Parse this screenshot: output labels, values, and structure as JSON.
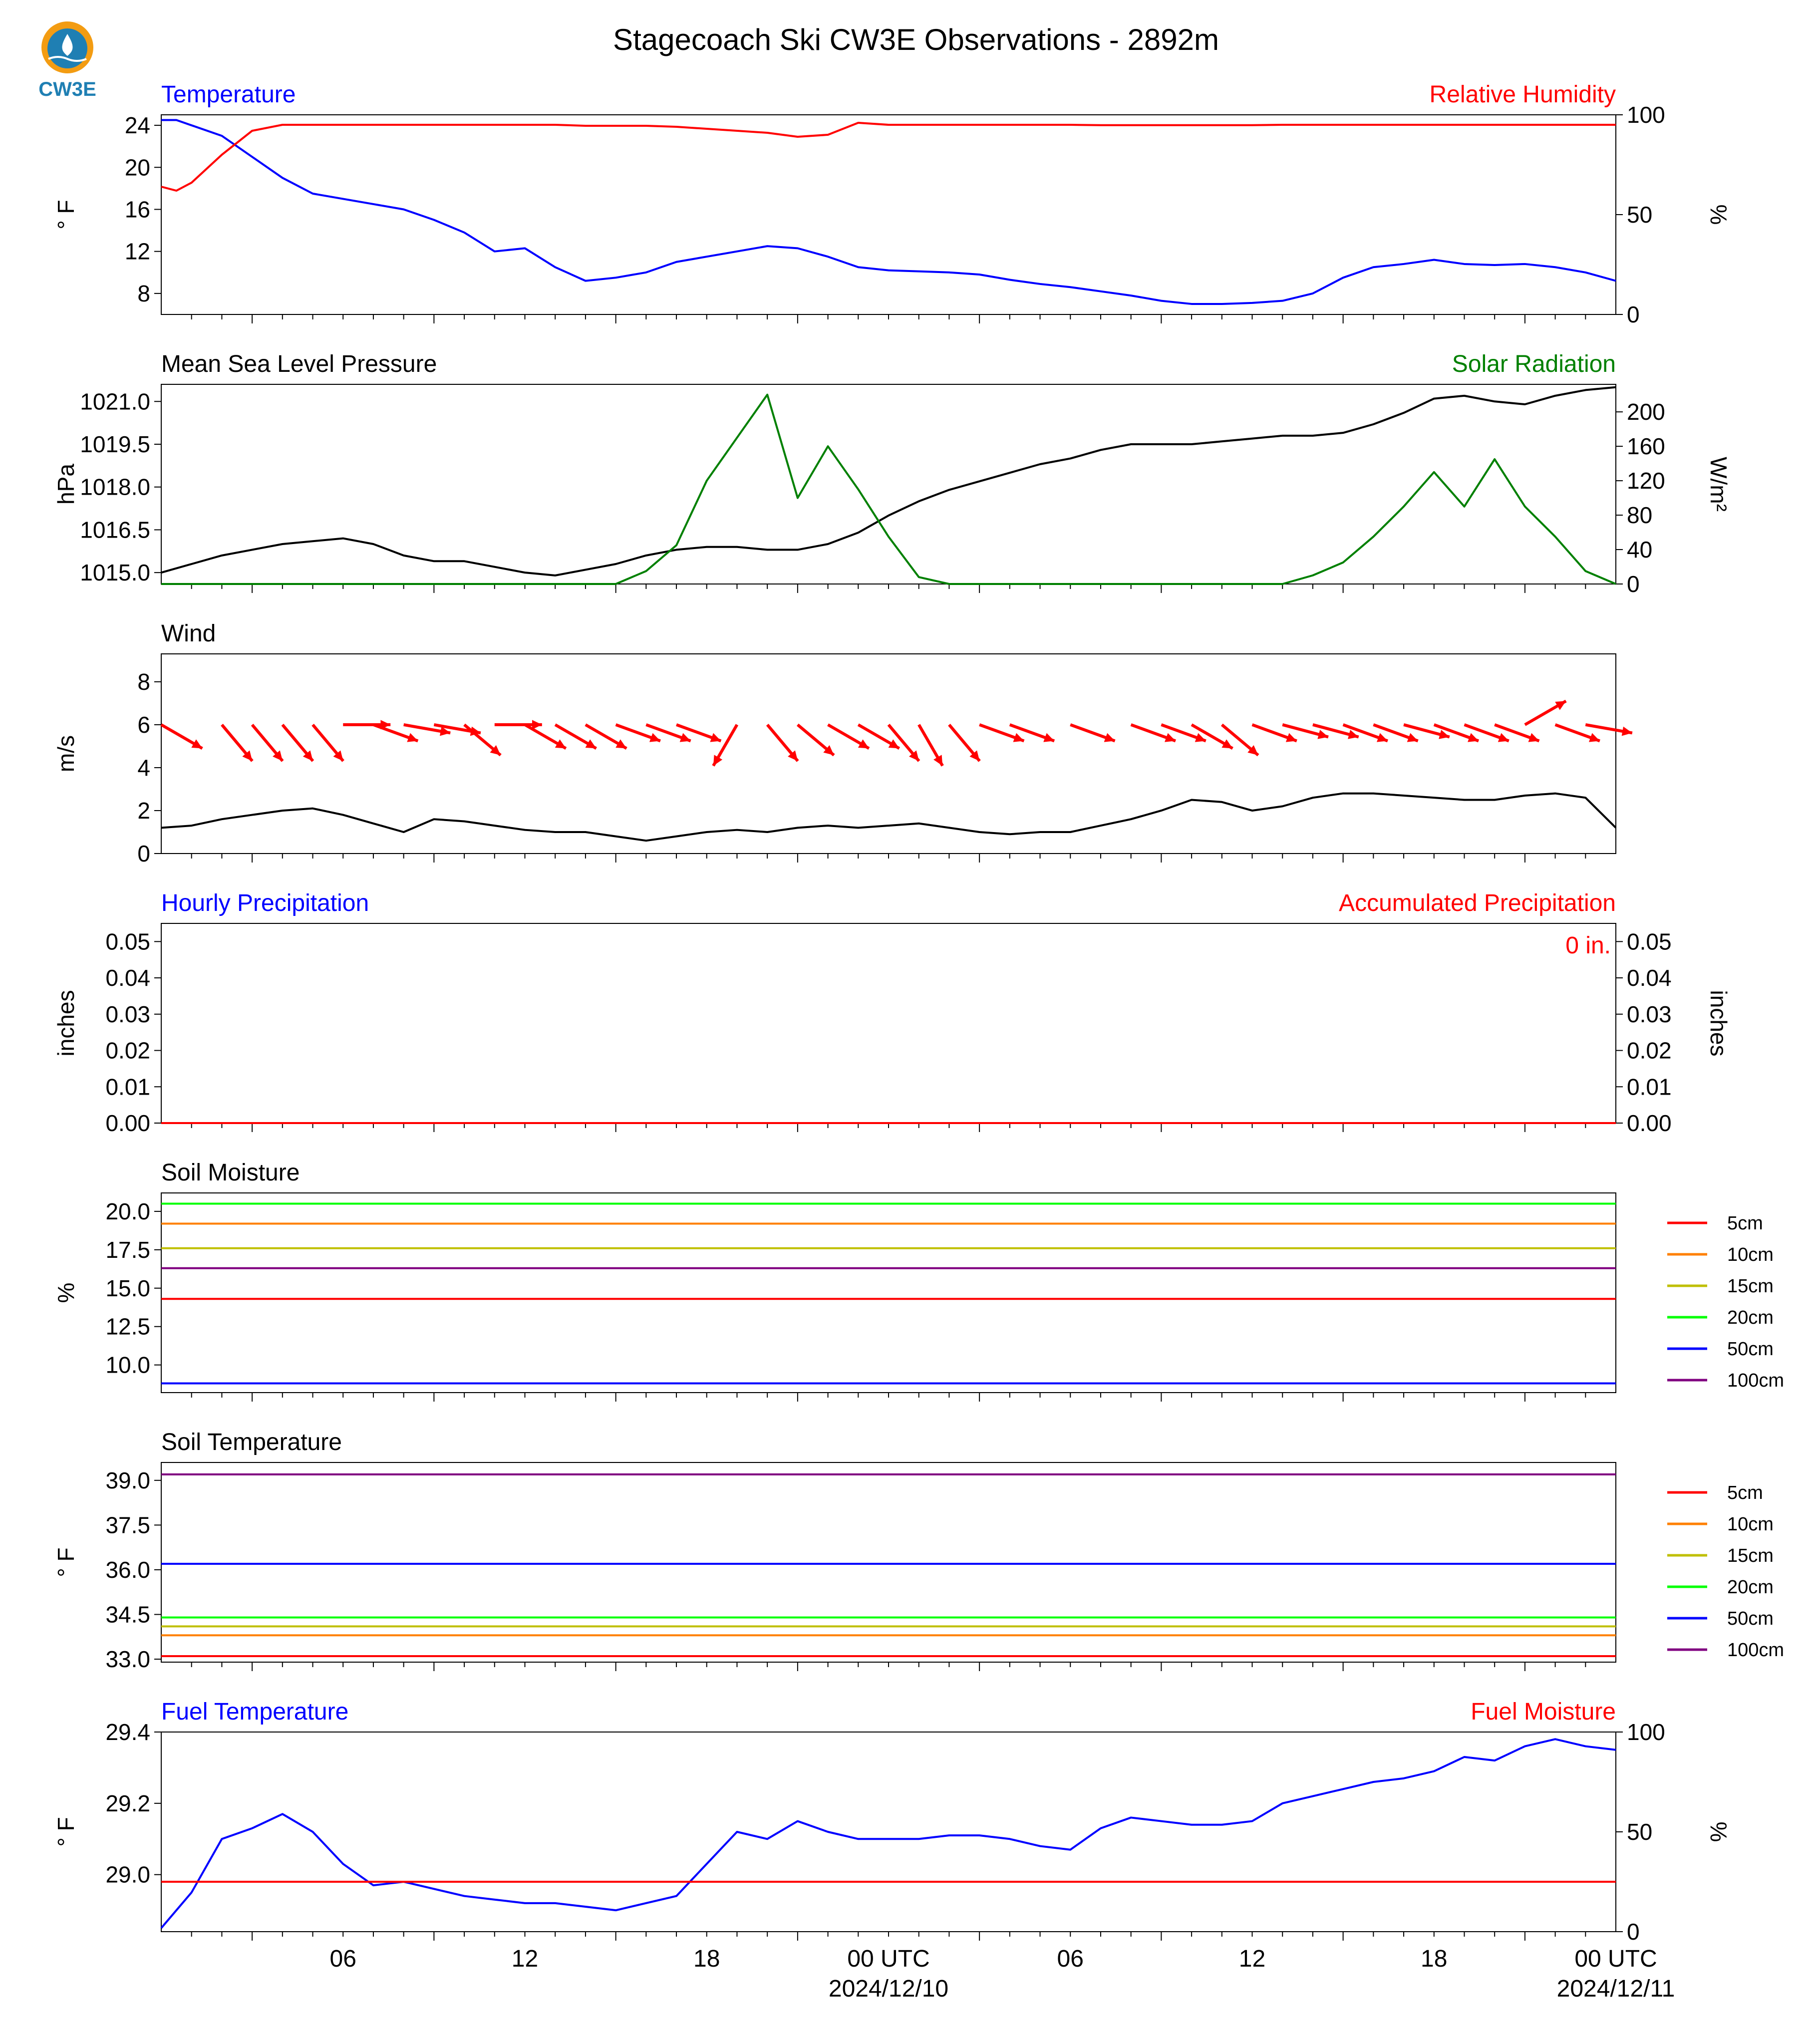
{
  "title": "Stagecoach Ski CW3E Observations - 2892m",
  "logo_text": "CW3E",
  "x_axis": {
    "tick_labels": [
      "06",
      "12",
      "18",
      "00 UTC",
      "06",
      "12",
      "18",
      "00 UTC"
    ],
    "date_labels": [
      "2024/12/10",
      "2024/12/11"
    ]
  },
  "chart_data": [
    {
      "type": "line",
      "title_left": "Temperature",
      "title_right": "Relative Humidity",
      "ylabel_left": "° F",
      "ylabel_right": "%",
      "ylim_left": [
        6,
        25
      ],
      "ylim_right": [
        0,
        100
      ],
      "yticks_left": [
        8,
        12,
        16,
        20,
        24
      ],
      "yticks_right": [
        0,
        50,
        100
      ],
      "x_hours": [
        0,
        0.5,
        1,
        2,
        3,
        4,
        5,
        6,
        7,
        8,
        9,
        10,
        11,
        12,
        13,
        14,
        15,
        16,
        17,
        18,
        19,
        20,
        21,
        22,
        23,
        24,
        25,
        26,
        27,
        28,
        29,
        30,
        31,
        32,
        33,
        34,
        35,
        36,
        37,
        38,
        39,
        40,
        41,
        42,
        43,
        44,
        45,
        46,
        47,
        48
      ],
      "series": [
        {
          "name": "Temperature",
          "axis": "left",
          "color": "#0000ff",
          "values": [
            24.5,
            24.5,
            24,
            23,
            21,
            19,
            17.5,
            17,
            16.5,
            16,
            15,
            13.8,
            12,
            12.3,
            10.5,
            9.2,
            9.5,
            10,
            11,
            11.5,
            12,
            12.5,
            12.3,
            11.5,
            10.5,
            10.2,
            10.1,
            10,
            9.8,
            9.3,
            8.9,
            8.6,
            8.2,
            7.8,
            7.3,
            7,
            7,
            7.1,
            7.3,
            8,
            9.5,
            10.5,
            10.8,
            11.2,
            10.8,
            10.7,
            10.8,
            10.5,
            10,
            9.2
          ]
        },
        {
          "name": "Relative Humidity",
          "axis": "right",
          "color": "#ff0000",
          "values": [
            64,
            62,
            66,
            80,
            92,
            95,
            95,
            95,
            95,
            95,
            95,
            95,
            95,
            95,
            95,
            94.5,
            94.5,
            94.5,
            94,
            93,
            92,
            91,
            89,
            90,
            96,
            95,
            95,
            95,
            95,
            95,
            95,
            95,
            94.8,
            94.8,
            94.8,
            94.8,
            94.8,
            94.8,
            95,
            95,
            95,
            95,
            95,
            95,
            95,
            95,
            95,
            95,
            95,
            95
          ]
        }
      ]
    },
    {
      "type": "line",
      "title_left": "Mean Sea Level Pressure",
      "title_right": "Solar Radiation",
      "ylabel_left": "hPa",
      "ylabel_right": "W/m²",
      "ylim_left": [
        1014.6,
        1021.6
      ],
      "ylim_right": [
        0,
        232
      ],
      "yticks_left": [
        1015.0,
        1016.5,
        1018.0,
        1019.5,
        1021.0
      ],
      "yticks_right": [
        0,
        40,
        80,
        120,
        160,
        200
      ],
      "x_hours": [
        0,
        1,
        2,
        3,
        4,
        5,
        6,
        7,
        8,
        9,
        10,
        11,
        12,
        13,
        14,
        15,
        16,
        17,
        18,
        19,
        20,
        21,
        22,
        23,
        24,
        25,
        26,
        27,
        28,
        29,
        30,
        31,
        32,
        33,
        34,
        35,
        36,
        37,
        38,
        39,
        40,
        41,
        42,
        43,
        44,
        45,
        46,
        47,
        48
      ],
      "series": [
        {
          "name": "Mean Sea Level Pressure",
          "axis": "left",
          "color": "#000000",
          "values": [
            1015.0,
            1015.3,
            1015.6,
            1015.8,
            1016.0,
            1016.1,
            1016.2,
            1016.0,
            1015.6,
            1015.4,
            1015.4,
            1015.2,
            1015.0,
            1014.9,
            1015.1,
            1015.3,
            1015.6,
            1015.8,
            1015.9,
            1015.9,
            1015.8,
            1015.8,
            1016.0,
            1016.4,
            1017.0,
            1017.5,
            1017.9,
            1018.2,
            1018.5,
            1018.8,
            1019.0,
            1019.3,
            1019.5,
            1019.5,
            1019.5,
            1019.6,
            1019.7,
            1019.8,
            1019.8,
            1019.9,
            1020.2,
            1020.6,
            1021.1,
            1021.2,
            1021.0,
            1020.9,
            1021.2,
            1021.4,
            1021.5
          ]
        },
        {
          "name": "Solar Radiation",
          "axis": "right",
          "color": "#008000",
          "values": [
            0,
            0,
            0,
            0,
            0,
            0,
            0,
            0,
            0,
            0,
            0,
            0,
            0,
            0,
            0,
            0,
            15,
            45,
            120,
            170,
            220,
            100,
            160,
            110,
            55,
            8,
            0,
            0,
            0,
            0,
            0,
            0,
            0,
            0,
            0,
            0,
            0,
            0,
            10,
            25,
            55,
            90,
            130,
            90,
            145,
            90,
            55,
            15,
            0
          ]
        }
      ]
    },
    {
      "type": "line",
      "title_left": "Wind",
      "ylabel_left": "m/s",
      "ylim_left": [
        0,
        9.3
      ],
      "yticks_left": [
        0,
        2,
        4,
        6,
        8
      ],
      "x_hours": [
        0,
        1,
        2,
        3,
        4,
        5,
        6,
        7,
        8,
        9,
        10,
        11,
        12,
        13,
        14,
        15,
        16,
        17,
        18,
        19,
        20,
        21,
        22,
        23,
        24,
        25,
        26,
        27,
        28,
        29,
        30,
        31,
        32,
        33,
        34,
        35,
        36,
        37,
        38,
        39,
        40,
        41,
        42,
        43,
        44,
        45,
        46,
        47,
        48
      ],
      "series": [
        {
          "name": "Wind speed",
          "color": "#000000",
          "values": [
            1.2,
            1.3,
            1.6,
            1.8,
            2.0,
            2.1,
            1.8,
            1.4,
            1.0,
            1.6,
            1.5,
            1.3,
            1.1,
            1.0,
            1.0,
            0.8,
            0.6,
            0.8,
            1.0,
            1.1,
            1.0,
            1.2,
            1.3,
            1.2,
            1.3,
            1.4,
            1.2,
            1.0,
            0.9,
            1.0,
            1.0,
            1.3,
            1.6,
            2.0,
            2.5,
            2.4,
            2.0,
            2.2,
            2.6,
            2.8,
            2.8,
            2.7,
            2.6,
            2.5,
            2.5,
            2.7,
            2.8,
            2.6,
            1.2
          ]
        }
      ],
      "wind_arrows": {
        "color": "#ff0000",
        "x_hours": [
          0,
          2,
          3,
          4,
          5,
          6,
          7,
          8,
          9,
          10,
          11,
          12,
          13,
          14,
          15,
          16,
          17,
          19,
          20,
          21,
          22,
          23,
          24,
          25,
          26,
          27,
          28,
          30,
          32,
          33,
          34,
          35,
          36,
          37,
          38,
          39,
          40,
          41,
          42,
          43,
          44,
          45,
          46,
          47
        ],
        "directions_deg": [
          300,
          320,
          320,
          320,
          320,
          270,
          290,
          280,
          280,
          310,
          270,
          300,
          300,
          300,
          290,
          290,
          290,
          30,
          320,
          310,
          300,
          300,
          320,
          330,
          320,
          290,
          290,
          290,
          290,
          290,
          300,
          310,
          290,
          285,
          285,
          290,
          290,
          285,
          290,
          290,
          290,
          240,
          290,
          280
        ]
      }
    },
    {
      "type": "line",
      "title_left": "Hourly Precipitation",
      "title_right": "Accumulated Precipitation",
      "ylabel_left": "inches",
      "ylabel_right": "inches",
      "ylim_left": [
        0,
        0.055
      ],
      "ylim_right": [
        0,
        0.055
      ],
      "yticks_left": [
        0.0,
        0.01,
        0.02,
        0.03,
        0.04,
        0.05
      ],
      "yticks_right": [
        0.0,
        0.01,
        0.02,
        0.03,
        0.04,
        0.05
      ],
      "annotation": "0 in.",
      "x_hours": [
        0,
        48
      ],
      "series": [
        {
          "name": "Hourly Precipitation",
          "axis": "left",
          "color": "#0000ff",
          "values": [
            0,
            0
          ]
        },
        {
          "name": "Accumulated Precipitation",
          "axis": "right",
          "color": "#ff0000",
          "values": [
            0,
            0
          ]
        }
      ]
    },
    {
      "type": "line",
      "title_left": "Soil Moisture",
      "ylabel_left": "%",
      "ylim_left": [
        8.2,
        21.2
      ],
      "yticks_left": [
        10.0,
        12.5,
        15.0,
        17.5,
        20.0
      ],
      "legend_placement": "right",
      "x_hours": [
        0,
        48
      ],
      "series": [
        {
          "name": "5cm",
          "color": "#ff0000",
          "values": [
            14.3,
            14.3
          ]
        },
        {
          "name": "10cm",
          "color": "#ff8000",
          "values": [
            19.2,
            19.2
          ]
        },
        {
          "name": "15cm",
          "color": "#bfbf00",
          "values": [
            17.6,
            17.6
          ]
        },
        {
          "name": "20cm",
          "color": "#00ff00",
          "values": [
            20.5,
            20.5
          ]
        },
        {
          "name": "50cm",
          "color": "#0000ff",
          "values": [
            8.8,
            8.8
          ]
        },
        {
          "name": "100cm",
          "color": "#800080",
          "values": [
            16.3,
            16.3
          ]
        }
      ]
    },
    {
      "type": "line",
      "title_left": "Soil Temperature",
      "ylabel_left": "° F",
      "ylim_left": [
        32.9,
        39.6
      ],
      "yticks_left": [
        33.0,
        34.5,
        36.0,
        37.5,
        39.0
      ],
      "legend_placement": "right",
      "x_hours": [
        0,
        48
      ],
      "series": [
        {
          "name": "5cm",
          "color": "#ff0000",
          "values": [
            33.1,
            33.1
          ]
        },
        {
          "name": "10cm",
          "color": "#ff8000",
          "values": [
            33.8,
            33.8
          ]
        },
        {
          "name": "15cm",
          "color": "#bfbf00",
          "values": [
            34.1,
            34.1
          ]
        },
        {
          "name": "20cm",
          "color": "#00ff00",
          "values": [
            34.4,
            34.4
          ]
        },
        {
          "name": "50cm",
          "color": "#0000ff",
          "values": [
            36.2,
            36.2
          ]
        },
        {
          "name": "100cm",
          "color": "#800080",
          "values": [
            39.2,
            39.2
          ]
        }
      ]
    },
    {
      "type": "line",
      "title_left": "Fuel Temperature",
      "title_right": "Fuel Moisture",
      "ylabel_left": "° F",
      "ylabel_right": "%",
      "ylim_left": [
        28.84,
        29.4
      ],
      "ylim_right": [
        0,
        100
      ],
      "yticks_left": [
        29.0,
        29.2,
        29.4
      ],
      "yticks_right": [
        0,
        50,
        100
      ],
      "x_hours": [
        0,
        1,
        2,
        3,
        4,
        5,
        6,
        7,
        8,
        9,
        10,
        11,
        12,
        13,
        14,
        15,
        16,
        17,
        18,
        19,
        20,
        21,
        22,
        23,
        24,
        25,
        26,
        27,
        28,
        29,
        30,
        31,
        32,
        33,
        34,
        35,
        36,
        37,
        38,
        39,
        40,
        41,
        42,
        43,
        44,
        45,
        46,
        47,
        48
      ],
      "series": [
        {
          "name": "Fuel Temperature",
          "axis": "left",
          "color": "#0000ff",
          "values": [
            28.85,
            28.95,
            29.1,
            29.13,
            29.17,
            29.12,
            29.03,
            28.97,
            28.98,
            28.96,
            28.94,
            28.93,
            28.92,
            28.92,
            28.91,
            28.9,
            28.92,
            28.94,
            29.03,
            29.12,
            29.1,
            29.15,
            29.12,
            29.1,
            29.1,
            29.1,
            29.11,
            29.11,
            29.1,
            29.08,
            29.07,
            29.13,
            29.16,
            29.15,
            29.14,
            29.14,
            29.15,
            29.2,
            29.22,
            29.24,
            29.26,
            29.27,
            29.29,
            29.33,
            29.32,
            29.36,
            29.38,
            29.36,
            29.35
          ]
        },
        {
          "name": "Fuel Moisture",
          "axis": "right",
          "color": "#ff0000",
          "values": [
            25,
            25
          ]
        }
      ]
    }
  ],
  "colors": {
    "temperature_title": "#0000ff",
    "humidity_title": "#ff0000",
    "solar_title": "#008000"
  }
}
